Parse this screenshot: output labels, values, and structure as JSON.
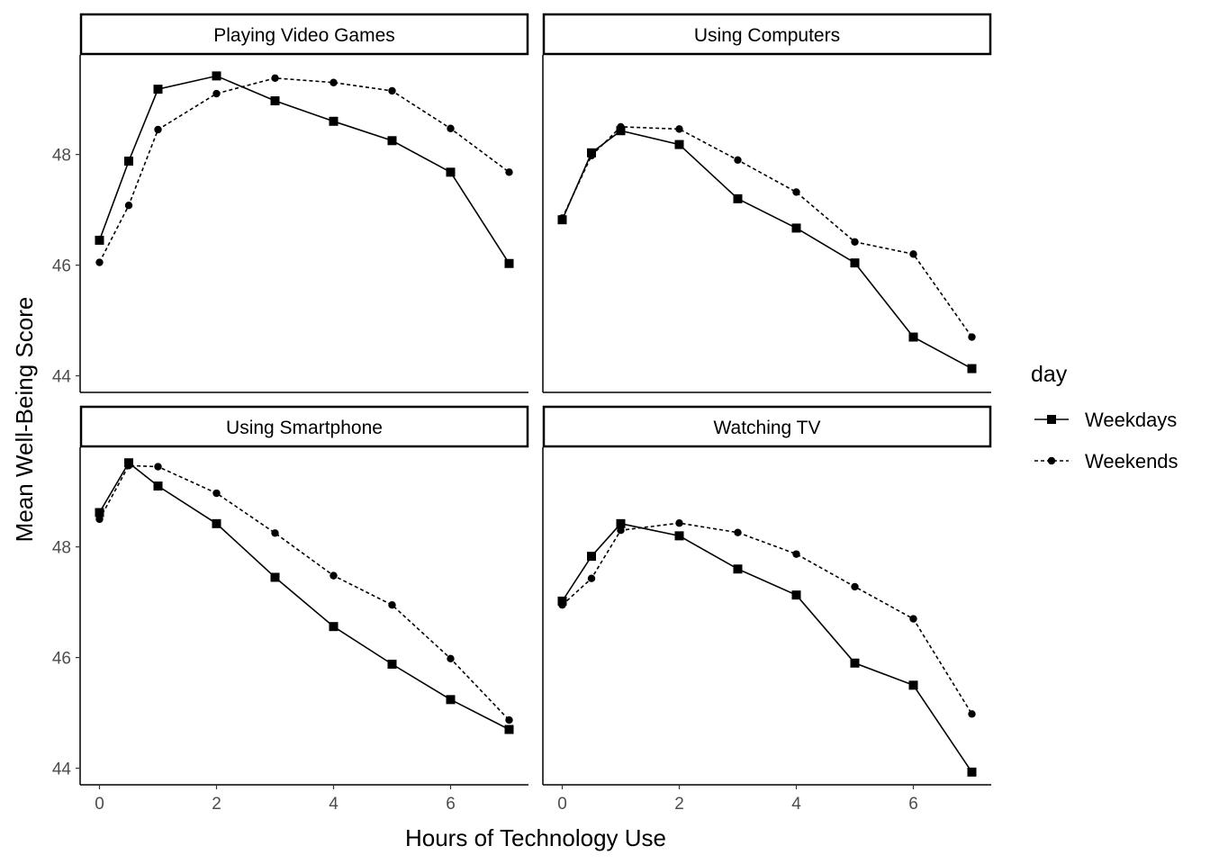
{
  "chart_data": {
    "type": "line",
    "xlabel": "Hours of Technology Use",
    "ylabel": "Mean Well-Being Score",
    "x_ticks": [
      0,
      2,
      4,
      6
    ],
    "y_ticks": [
      44,
      46,
      48
    ],
    "xlim": [
      -0.3,
      7.3
    ],
    "ylim": [
      43.7,
      49.8
    ],
    "legend": {
      "title": "day",
      "placement": "right",
      "entries": [
        {
          "label": "Weekdays",
          "shape": "square",
          "line": "solid"
        },
        {
          "label": "Weekends",
          "shape": "circle",
          "line": "dashed"
        }
      ]
    },
    "x": [
      0,
      0.5,
      1,
      2,
      3,
      4,
      5,
      6,
      7
    ],
    "panels": [
      {
        "title": "Playing Video Games",
        "series": [
          {
            "name": "Weekdays",
            "values": [
              46.45,
              47.88,
              49.18,
              49.42,
              48.97,
              48.6,
              48.25,
              47.68,
              46.03
            ]
          },
          {
            "name": "Weekends",
            "values": [
              46.05,
              47.08,
              48.45,
              49.1,
              49.38,
              49.3,
              49.15,
              48.47,
              47.68
            ]
          }
        ]
      },
      {
        "title": "Using Computers",
        "series": [
          {
            "name": "Weekdays",
            "values": [
              46.82,
              48.03,
              48.43,
              48.18,
              47.2,
              46.67,
              46.04,
              44.7,
              44.13
            ]
          },
          {
            "name": "Weekends",
            "values": [
              46.85,
              47.98,
              48.5,
              48.46,
              47.9,
              47.32,
              46.42,
              46.2,
              44.7
            ]
          }
        ]
      },
      {
        "title": "Using Smartphone",
        "series": [
          {
            "name": "Weekdays",
            "values": [
              48.62,
              49.52,
              49.1,
              48.42,
              47.45,
              46.56,
              45.88,
              45.24,
              44.7
            ]
          },
          {
            "name": "Weekends",
            "values": [
              48.5,
              49.47,
              49.45,
              48.97,
              48.25,
              47.48,
              46.95,
              45.98,
              44.87
            ]
          }
        ]
      },
      {
        "title": "Watching TV",
        "series": [
          {
            "name": "Weekdays",
            "values": [
              47.02,
              47.83,
              48.42,
              48.2,
              47.6,
              47.13,
              45.9,
              45.5,
              43.93
            ]
          },
          {
            "name": "Weekends",
            "values": [
              46.95,
              47.43,
              48.3,
              48.43,
              48.26,
              47.87,
              47.28,
              46.7,
              44.98
            ]
          }
        ]
      }
    ]
  }
}
